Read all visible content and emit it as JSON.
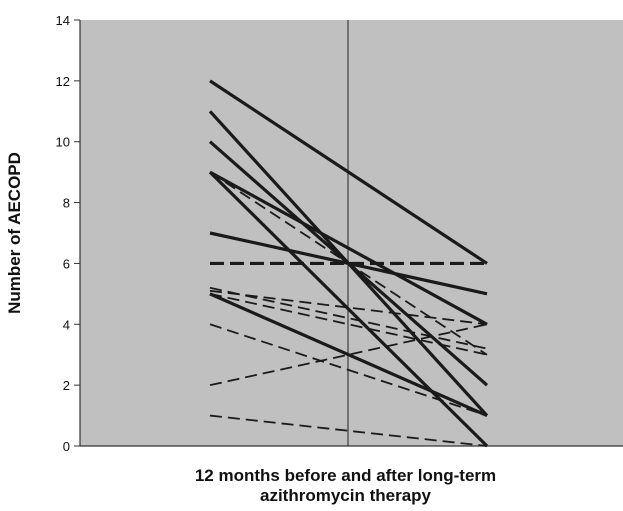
{
  "chart_data": {
    "type": "line",
    "title": "",
    "xlabel": "12 months before and after long-term azithromycin therapy",
    "xlabel_lines": [
      "12 months before and after long-term",
      "azithromycin therapy"
    ],
    "ylabel": "Number of AECOPD",
    "ylim": [
      0,
      14
    ],
    "yticks": [
      0,
      2,
      4,
      6,
      8,
      10,
      12,
      14
    ],
    "x": [
      "before",
      "after"
    ],
    "grid": false,
    "legend": "none",
    "background_color": "#c0c0c0",
    "line_color": "#1a1a1a",
    "series": [
      {
        "values": [
          12,
          6
        ],
        "style": "solid"
      },
      {
        "values": [
          11,
          1
        ],
        "style": "solid"
      },
      {
        "values": [
          10,
          2
        ],
        "style": "solid"
      },
      {
        "values": [
          9,
          4
        ],
        "style": "solid"
      },
      {
        "values": [
          9,
          0
        ],
        "style": "solid"
      },
      {
        "values": [
          7,
          5
        ],
        "style": "solid"
      },
      {
        "values": [
          5,
          1
        ],
        "style": "solid"
      },
      {
        "values": [
          6,
          6
        ],
        "style": "dashed-thick"
      },
      {
        "values": [
          9,
          3
        ],
        "style": "dashed"
      },
      {
        "values": [
          5.2,
          3.2
        ],
        "style": "dashed"
      },
      {
        "values": [
          5.1,
          4
        ],
        "style": "dashed"
      },
      {
        "values": [
          5,
          3
        ],
        "style": "dashed"
      },
      {
        "values": [
          4,
          1
        ],
        "style": "dashed"
      },
      {
        "values": [
          2,
          4
        ],
        "style": "dashed"
      },
      {
        "values": [
          1,
          0
        ],
        "style": "dashed"
      }
    ]
  }
}
